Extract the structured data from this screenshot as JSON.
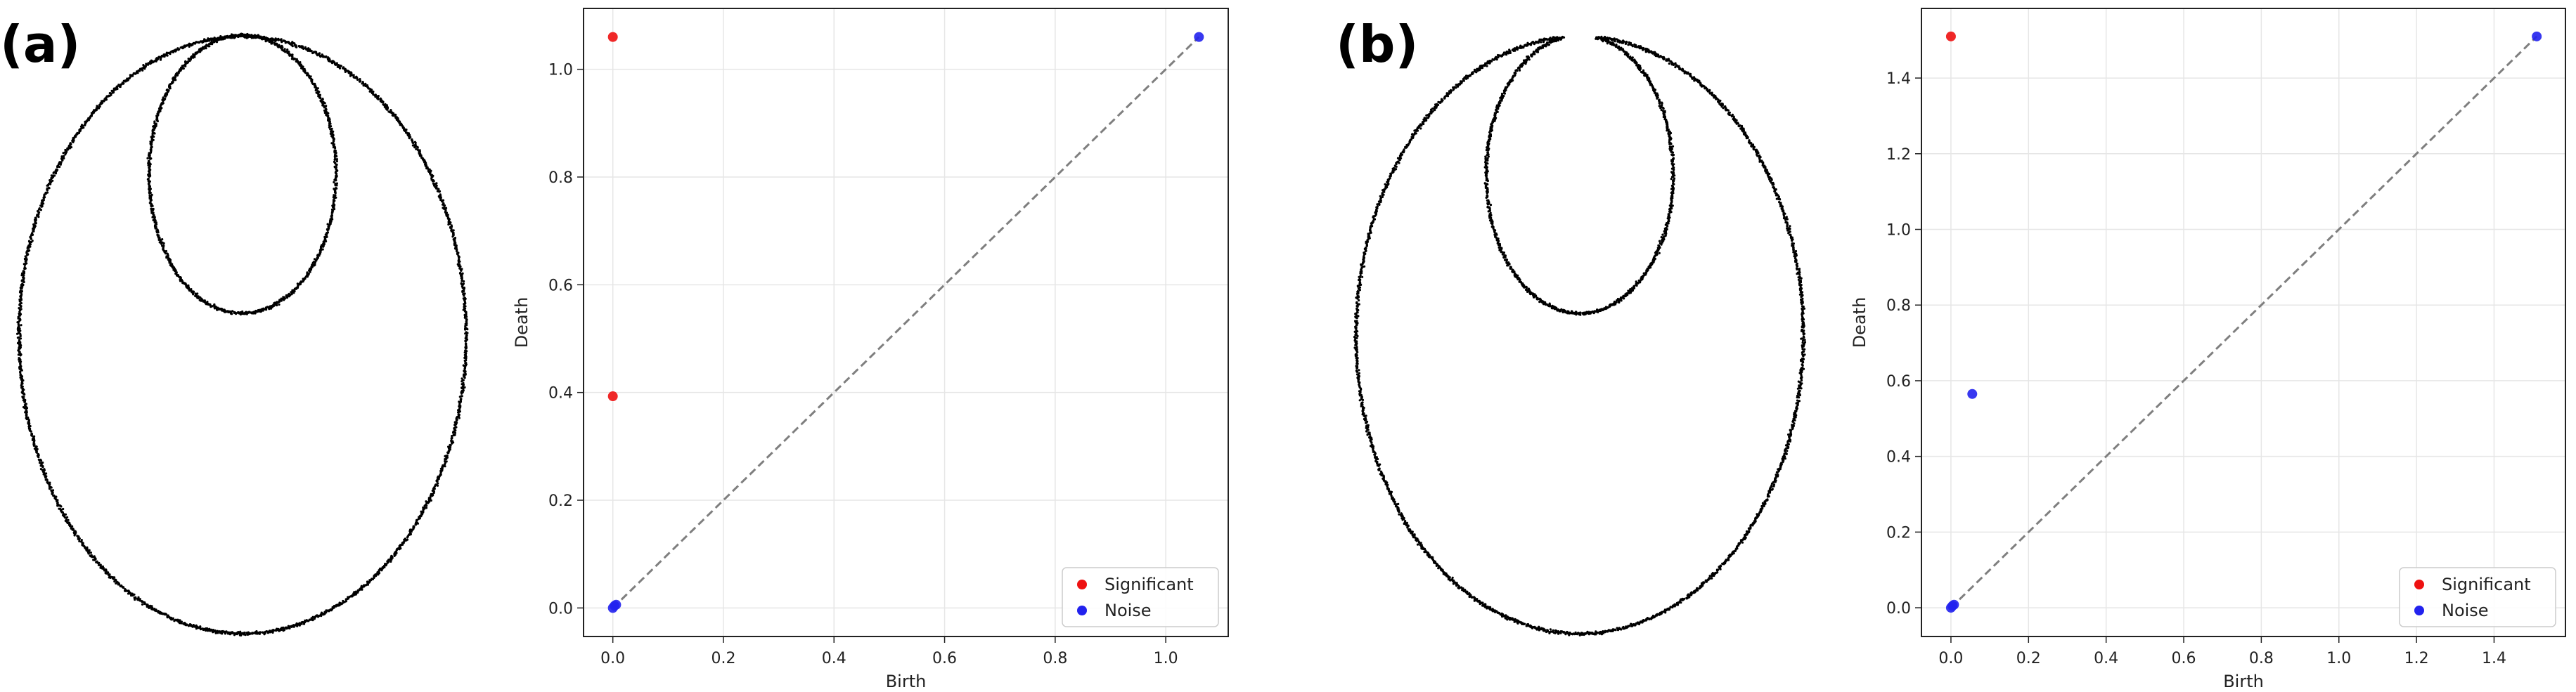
{
  "panels": [
    {
      "label": "(a)",
      "shape": "nested-loops-closed"
    },
    {
      "label": "(b)",
      "shape": "nested-loops-open"
    }
  ],
  "colors": {
    "significant": "#ee1111",
    "noise": "#2222ee",
    "diagonal": "#7f7f7f",
    "grid": "#e6e6e6",
    "curve": "#000000"
  },
  "chart_data": [
    {
      "type": "scatter",
      "title": "",
      "xlabel": "Birth",
      "ylabel": "Death",
      "xlim": [
        -0.053,
        1.113
      ],
      "ylim": [
        -0.053,
        1.113
      ],
      "xticks": [
        0.0,
        0.2,
        0.4,
        0.6,
        0.8,
        1.0
      ],
      "yticks": [
        0.0,
        0.2,
        0.4,
        0.6,
        0.8,
        1.0
      ],
      "grid": true,
      "diagonal": [
        0,
        1.06
      ],
      "legend_position": "lower-right",
      "series": [
        {
          "name": "Significant",
          "color": "#ee1111",
          "points": [
            [
              0.0,
              1.06
            ],
            [
              0.0,
              0.393
            ]
          ]
        },
        {
          "name": "Noise",
          "color": "#2222ee",
          "points": [
            [
              1.06,
              1.06
            ],
            [
              0.0,
              0.0
            ],
            [
              0.003,
              0.004
            ],
            [
              0.006,
              0.006
            ]
          ]
        }
      ]
    },
    {
      "type": "scatter",
      "title": "",
      "xlabel": "Birth",
      "ylabel": "Death",
      "xlim": [
        -0.076,
        1.584
      ],
      "ylim": [
        -0.076,
        1.584
      ],
      "xticks": [
        0.0,
        0.2,
        0.4,
        0.6,
        0.8,
        1.0,
        1.2,
        1.4
      ],
      "yticks": [
        0.0,
        0.2,
        0.4,
        0.6,
        0.8,
        1.0,
        1.2,
        1.4
      ],
      "grid": true,
      "diagonal": [
        0,
        1.51
      ],
      "legend_position": "lower-right",
      "series": [
        {
          "name": "Significant",
          "color": "#ee1111",
          "points": [
            [
              0.0,
              1.51
            ]
          ]
        },
        {
          "name": "Noise",
          "color": "#2222ee",
          "points": [
            [
              1.51,
              1.51
            ],
            [
              0.055,
              0.565
            ],
            [
              0.0,
              0.0
            ],
            [
              0.004,
              0.005
            ],
            [
              0.008,
              0.008
            ]
          ]
        }
      ]
    }
  ]
}
